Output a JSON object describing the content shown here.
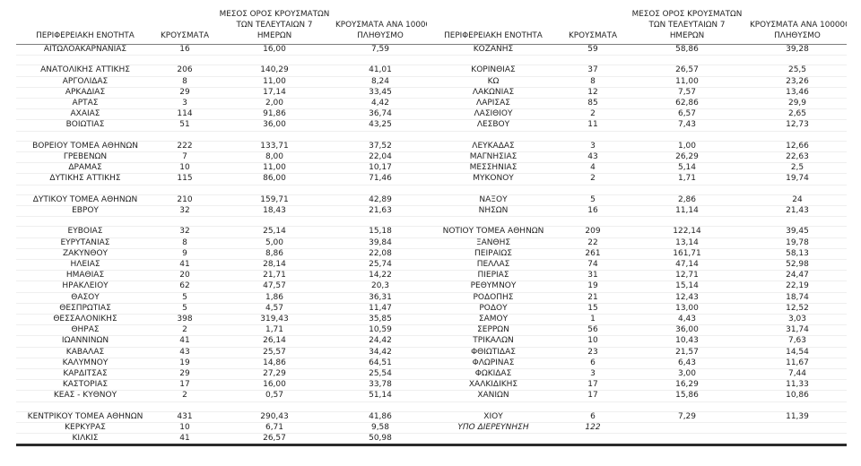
{
  "table": {
    "columns": {
      "region": "ΠΕΡΙΦΕΡΕΙΑΚΗ ΕΝΟΤΗΤΑ",
      "cases": "ΚΡΟΥΣΜΑΤΑ",
      "avg7_line1": "ΜΕΣΟΣ ΟΡΟΣ ΚΡΟΥΣΜΑΤΩΝ",
      "avg7_line2": "ΤΩΝ ΤΕΛΕΥΤΑΙΩΝ 7",
      "avg7_line3": "ΗΜΕΡΩΝ",
      "per100k_line1": "ΚΡΟΥΣΜΑΤΑ ΑΝΑ 100000",
      "per100k_line2": "ΠΛΗΘΥΣΜΟ"
    },
    "left_rows": [
      {
        "name": "ΑΙΤΩΛΟΑΚΑΡΝΑΝΙΑΣ",
        "cases": "16",
        "avg7": "16,00",
        "per100k": "7,59"
      },
      null,
      {
        "name": "ΑΝΑΤΟΛΙΚΗΣ ΑΤΤΙΚΗΣ",
        "cases": "206",
        "avg7": "140,29",
        "per100k": "41,01"
      },
      {
        "name": "ΑΡΓΟΛΙΔΑΣ",
        "cases": "8",
        "avg7": "11,00",
        "per100k": "8,24"
      },
      {
        "name": "ΑΡΚΑΔΙΑΣ",
        "cases": "29",
        "avg7": "17,14",
        "per100k": "33,45"
      },
      {
        "name": "ΑΡΤΑΣ",
        "cases": "3",
        "avg7": "2,00",
        "per100k": "4,42"
      },
      {
        "name": "ΑΧΑΪΑΣ",
        "cases": "114",
        "avg7": "91,86",
        "per100k": "36,74"
      },
      {
        "name": "ΒΟΙΩΤΙΑΣ",
        "cases": "51",
        "avg7": "36,00",
        "per100k": "43,25"
      },
      null,
      {
        "name": "ΒΟΡΕΙΟΥ ΤΟΜΕΑ ΑΘΗΝΩΝ",
        "cases": "222",
        "avg7": "133,71",
        "per100k": "37,52"
      },
      {
        "name": "ΓΡΕΒΕΝΩΝ",
        "cases": "7",
        "avg7": "8,00",
        "per100k": "22,04"
      },
      {
        "name": "ΔΡΑΜΑΣ",
        "cases": "10",
        "avg7": "11,00",
        "per100k": "10,17"
      },
      {
        "name": "ΔΥΤΙΚΗΣ ΑΤΤΙΚΗΣ",
        "cases": "115",
        "avg7": "86,00",
        "per100k": "71,46"
      },
      null,
      {
        "name": "ΔΥΤΙΚΟΥ ΤΟΜΕΑ ΑΘΗΝΩΝ",
        "cases": "210",
        "avg7": "159,71",
        "per100k": "42,89"
      },
      {
        "name": "ΕΒΡΟΥ",
        "cases": "32",
        "avg7": "18,43",
        "per100k": "21,63"
      },
      null,
      {
        "name": "ΕΥΒΟΙΑΣ",
        "cases": "32",
        "avg7": "25,14",
        "per100k": "15,18"
      },
      {
        "name": "ΕΥΡΥΤΑΝΙΑΣ",
        "cases": "8",
        "avg7": "5,00",
        "per100k": "39,84"
      },
      {
        "name": "ΖΑΚΥΝΘΟΥ",
        "cases": "9",
        "avg7": "8,86",
        "per100k": "22,08"
      },
      {
        "name": "ΗΛΕΙΑΣ",
        "cases": "41",
        "avg7": "28,14",
        "per100k": "25,74"
      },
      {
        "name": "ΗΜΑΘΙΑΣ",
        "cases": "20",
        "avg7": "21,71",
        "per100k": "14,22"
      },
      {
        "name": "ΗΡΑΚΛΕΙΟΥ",
        "cases": "62",
        "avg7": "47,57",
        "per100k": "20,3"
      },
      {
        "name": "ΘΑΣΟΥ",
        "cases": "5",
        "avg7": "1,86",
        "per100k": "36,31"
      },
      {
        "name": "ΘΕΣΠΡΩΤΙΑΣ",
        "cases": "5",
        "avg7": "4,57",
        "per100k": "11,47"
      },
      {
        "name": "ΘΕΣΣΑΛΟΝΙΚΗΣ",
        "cases": "398",
        "avg7": "319,43",
        "per100k": "35,85"
      },
      {
        "name": "ΘΗΡΑΣ",
        "cases": "2",
        "avg7": "1,71",
        "per100k": "10,59"
      },
      {
        "name": "ΙΩΑΝΝΙΝΩΝ",
        "cases": "41",
        "avg7": "26,14",
        "per100k": "24,42"
      },
      {
        "name": "ΚΑΒΑΛΑΣ",
        "cases": "43",
        "avg7": "25,57",
        "per100k": "34,42"
      },
      {
        "name": "ΚΑΛΥΜΝΟΥ",
        "cases": "19",
        "avg7": "14,86",
        "per100k": "64,51"
      },
      {
        "name": "ΚΑΡΔΙΤΣΑΣ",
        "cases": "29",
        "avg7": "27,29",
        "per100k": "25,54"
      },
      {
        "name": "ΚΑΣΤΟΡΙΑΣ",
        "cases": "17",
        "avg7": "16,00",
        "per100k": "33,78"
      },
      {
        "name": "ΚΕΑΣ - ΚΥΘΝΟΥ",
        "cases": "2",
        "avg7": "0,57",
        "per100k": "51,14"
      },
      null,
      {
        "name": "ΚΕΝΤΡΙΚΟΥ ΤΟΜΕΑ ΑΘΗΝΩΝ",
        "cases": "431",
        "avg7": "290,43",
        "per100k": "41,86"
      },
      {
        "name": "ΚΕΡΚΥΡΑΣ",
        "cases": "10",
        "avg7": "6,71",
        "per100k": "9,58"
      },
      {
        "name": "ΚΙΛΚΙΣ",
        "cases": "41",
        "avg7": "26,57",
        "per100k": "50,98"
      }
    ],
    "right_rows": [
      {
        "name": "ΚΟΖΑΝΗΣ",
        "cases": "59",
        "avg7": "58,86",
        "per100k": "39,28"
      },
      null,
      {
        "name": "ΚΟΡΙΝΘΙΑΣ",
        "cases": "37",
        "avg7": "26,57",
        "per100k": "25,5"
      },
      {
        "name": "ΚΩ",
        "cases": "8",
        "avg7": "11,00",
        "per100k": "23,26"
      },
      {
        "name": "ΛΑΚΩΝΙΑΣ",
        "cases": "12",
        "avg7": "7,57",
        "per100k": "13,46"
      },
      {
        "name": "ΛΑΡΙΣΑΣ",
        "cases": "85",
        "avg7": "62,86",
        "per100k": "29,9"
      },
      {
        "name": "ΛΑΣΙΘΙΟΥ",
        "cases": "2",
        "avg7": "6,57",
        "per100k": "2,65"
      },
      {
        "name": "ΛΕΣΒΟΥ",
        "cases": "11",
        "avg7": "7,43",
        "per100k": "12,73"
      },
      null,
      {
        "name": "ΛΕΥΚΑΔΑΣ",
        "cases": "3",
        "avg7": "1,00",
        "per100k": "12,66"
      },
      {
        "name": "ΜΑΓΝΗΣΙΑΣ",
        "cases": "43",
        "avg7": "26,29",
        "per100k": "22,63"
      },
      {
        "name": "ΜΕΣΣΗΝΙΑΣ",
        "cases": "4",
        "avg7": "5,14",
        "per100k": "2,5"
      },
      {
        "name": "ΜΥΚΟΝΟΥ",
        "cases": "2",
        "avg7": "1,71",
        "per100k": "19,74"
      },
      null,
      {
        "name": "ΝΑΞΟΥ",
        "cases": "5",
        "avg7": "2,86",
        "per100k": "24"
      },
      {
        "name": "ΝΗΣΩΝ",
        "cases": "16",
        "avg7": "11,14",
        "per100k": "21,43"
      },
      null,
      {
        "name": "ΝΟΤΙΟΥ ΤΟΜΕΑ ΑΘΗΝΩΝ",
        "cases": "209",
        "avg7": "122,14",
        "per100k": "39,45"
      },
      {
        "name": "ΞΑΝΘΗΣ",
        "cases": "22",
        "avg7": "13,14",
        "per100k": "19,78"
      },
      {
        "name": "ΠΕΙΡΑΙΩΣ",
        "cases": "261",
        "avg7": "161,71",
        "per100k": "58,13"
      },
      {
        "name": "ΠΕΛΛΑΣ",
        "cases": "74",
        "avg7": "47,14",
        "per100k": "52,98"
      },
      {
        "name": "ΠΙΕΡΙΑΣ",
        "cases": "31",
        "avg7": "12,71",
        "per100k": "24,47"
      },
      {
        "name": "ΡΕΘΥΜΝΟΥ",
        "cases": "19",
        "avg7": "15,14",
        "per100k": "22,19"
      },
      {
        "name": "ΡΟΔΟΠΗΣ",
        "cases": "21",
        "avg7": "12,43",
        "per100k": "18,74"
      },
      {
        "name": "ΡΟΔΟΥ",
        "cases": "15",
        "avg7": "13,00",
        "per100k": "12,52"
      },
      {
        "name": "ΣΑΜΟΥ",
        "cases": "1",
        "avg7": "4,43",
        "per100k": "3,03"
      },
      {
        "name": "ΣΕΡΡΩΝ",
        "cases": "56",
        "avg7": "36,00",
        "per100k": "31,74"
      },
      {
        "name": "ΤΡΙΚΑΛΩΝ",
        "cases": "10",
        "avg7": "10,43",
        "per100k": "7,63"
      },
      {
        "name": "ΦΘΙΩΤΙΔΑΣ",
        "cases": "23",
        "avg7": "21,57",
        "per100k": "14,54"
      },
      {
        "name": "ΦΛΩΡΙΝΑΣ",
        "cases": "6",
        "avg7": "6,43",
        "per100k": "11,67"
      },
      {
        "name": "ΦΩΚΙΔΑΣ",
        "cases": "3",
        "avg7": "3,00",
        "per100k": "7,44"
      },
      {
        "name": "ΧΑΛΚΙΔΙΚΗΣ",
        "cases": "17",
        "avg7": "16,29",
        "per100k": "11,33"
      },
      {
        "name": "ΧΑΝΙΩΝ",
        "cases": "17",
        "avg7": "15,86",
        "per100k": "10,86"
      },
      null,
      {
        "name": "ΧΙΟΥ",
        "cases": "6",
        "avg7": "7,29",
        "per100k": "11,39"
      },
      {
        "name": "ΥΠΟ ΔΙΕΡΕΥΝΗΣΗ",
        "cases": "122",
        "avg7": "",
        "per100k": "",
        "italic": true
      },
      null
    ]
  }
}
